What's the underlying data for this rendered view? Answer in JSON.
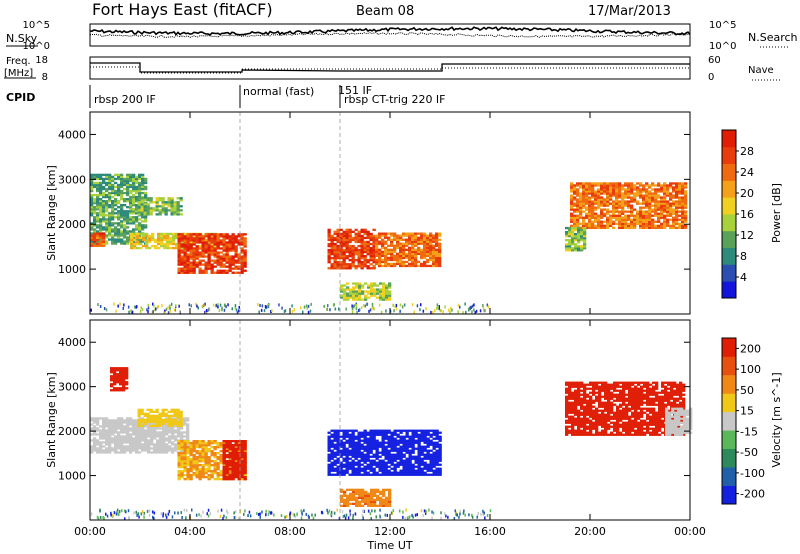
{
  "header": {
    "station": "Fort Hays East (fitACF)",
    "beam": "Beam 08",
    "date": "17/Mar/2013"
  },
  "top_panels": {
    "nsky_label": "N.Sky",
    "nsearch_label": "N.Search",
    "noise_ticks_left": [
      "10^5",
      "10^0"
    ],
    "noise_ticks_right": [
      "10^5",
      "10^0"
    ],
    "freq_label_line1": "Freq.",
    "freq_label_line2": "[MHz]",
    "freq_ticks": [
      "18",
      "8"
    ],
    "nave_label": "Nave",
    "nave_ticks": [
      "60",
      "0"
    ],
    "cpid_label": "CPID"
  },
  "cpid_segments": [
    {
      "label": "rbsp 200 IF",
      "start_hour": 0
    },
    {
      "label": "normal (fast)",
      "start_hour": 6
    },
    {
      "label": "151 IF",
      "start_hour": 9.1
    },
    {
      "label": "rbsp CT-trig 220 IF",
      "start_hour": 10
    }
  ],
  "axes": {
    "xlabel": "Time UT",
    "xticks": [
      "00:00",
      "04:00",
      "08:00",
      "12:00",
      "16:00",
      "20:00",
      "00:00"
    ],
    "ylabel": "Slant Range [km]",
    "yticks": [
      "1000",
      "2000",
      "3000",
      "4000"
    ]
  },
  "colorbars": {
    "power": {
      "label": "Power [dB]",
      "ticks": [
        "4",
        "8",
        "12",
        "16",
        "20",
        "24",
        "28"
      ],
      "colors": [
        "#1414dc",
        "#2a4fb0",
        "#2e8a7a",
        "#5aa25a",
        "#a8d23c",
        "#f0d020",
        "#f4a018",
        "#f06a10",
        "#e83c0c",
        "#e01e06"
      ]
    },
    "velocity": {
      "label": "Velocity [m s^-1]",
      "ticks": [
        "200",
        "100",
        "50",
        "15",
        "-15",
        "-50",
        "-100",
        "-200"
      ],
      "colors": [
        "#1420e0",
        "#2060a8",
        "#2e8a5a",
        "#5ab85a",
        "#c8c8c8",
        "#f0c818",
        "#f08818",
        "#e85010",
        "#e01e06"
      ]
    }
  },
  "chart_data": [
    {
      "type": "heatmap",
      "title": "Power",
      "x_unit": "hours UT",
      "y_unit": "km",
      "xlim": [
        0,
        24
      ],
      "ylim": [
        0,
        4500
      ],
      "value_range_db": [
        0,
        30
      ],
      "patches": [
        {
          "t0": 0.0,
          "t1": 2.2,
          "r0": 1550,
          "r1": 3100,
          "value": 10
        },
        {
          "t0": 0.0,
          "t1": 0.6,
          "r0": 1500,
          "r1": 1800,
          "value": 24
        },
        {
          "t0": 1.6,
          "t1": 5.0,
          "r0": 1450,
          "r1": 1800,
          "value": 16
        },
        {
          "t0": 1.9,
          "t1": 3.7,
          "r0": 2200,
          "r1": 2600,
          "value": 12
        },
        {
          "t0": 3.5,
          "t1": 6.2,
          "r0": 900,
          "r1": 1800,
          "value": 26
        },
        {
          "t0": 9.5,
          "t1": 11.4,
          "r0": 1000,
          "r1": 1900,
          "value": 26
        },
        {
          "t0": 11.4,
          "t1": 14.0,
          "r0": 1050,
          "r1": 1800,
          "value": 23
        },
        {
          "t0": 10.0,
          "t1": 12.0,
          "r0": 300,
          "r1": 700,
          "value": 14
        },
        {
          "t0": 19.2,
          "t1": 23.8,
          "r0": 1900,
          "r1": 2900,
          "value": 22
        },
        {
          "t0": 19.0,
          "t1": 19.8,
          "r0": 1400,
          "r1": 1900,
          "value": 12
        }
      ]
    },
    {
      "type": "heatmap",
      "title": "Velocity",
      "x_unit": "hours UT",
      "y_unit": "km",
      "xlim": [
        0,
        24
      ],
      "ylim": [
        0,
        4500
      ],
      "value_range_ms": [
        -200,
        200
      ],
      "patches": [
        {
          "t0": 0.0,
          "t1": 3.9,
          "r0": 1500,
          "r1": 2300,
          "value": 0
        },
        {
          "t0": 0.8,
          "t1": 1.5,
          "r0": 2900,
          "r1": 3400,
          "value": 200
        },
        {
          "t0": 1.9,
          "t1": 3.6,
          "r0": 2100,
          "r1": 2500,
          "value": 50
        },
        {
          "t0": 3.5,
          "t1": 6.2,
          "r0": 900,
          "r1": 1800,
          "value": 70
        },
        {
          "t0": 5.3,
          "t1": 6.2,
          "r0": 900,
          "r1": 1800,
          "value": 200
        },
        {
          "t0": 9.5,
          "t1": 14.0,
          "r0": 1000,
          "r1": 2000,
          "value": -200
        },
        {
          "t0": 10.0,
          "t1": 12.0,
          "r0": 300,
          "r1": 700,
          "value": 100
        },
        {
          "t0": 19.0,
          "t1": 23.8,
          "r0": 1900,
          "r1": 3100,
          "value": 200
        },
        {
          "t0": 23.0,
          "t1": 24.0,
          "r0": 1900,
          "r1": 2500,
          "value": 0
        }
      ]
    }
  ]
}
